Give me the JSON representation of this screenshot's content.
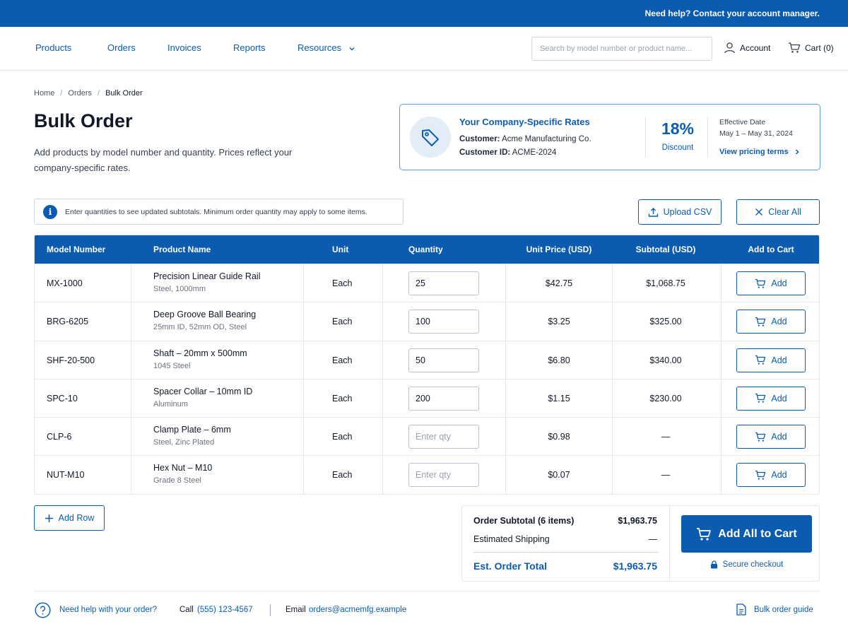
{
  "topbar": {
    "help_text": "Need help? Contact your account manager."
  },
  "nav": {
    "links": [
      "Products",
      "Orders",
      "Invoices",
      "Reports",
      "Resources"
    ],
    "search_placeholder": "Search by model number or product name...",
    "account_label": "Account",
    "cart_label": "Cart (0)"
  },
  "breadcrumb": [
    "Home",
    "Orders",
    "Bulk Order"
  ],
  "page": {
    "title": "Bulk Order",
    "intro": "Add products by model number and quantity. Prices reflect your company-specific rates."
  },
  "rates": {
    "title": "Your Company-Specific Rates",
    "customer_label": "Customer:",
    "customer_value": "Acme Manufacturing Co.",
    "customer_id_label": "Customer ID:",
    "customer_id_value": "ACME-2024",
    "discount_value": "18%",
    "discount_label": "Discount",
    "effective_label": "Effective Date",
    "effective_value": "May 1 – May 31, 2024",
    "pricing_link": "View pricing terms"
  },
  "info_message": "Enter quantities to see updated subtotals. Minimum order quantity may apply to some items.",
  "actions": {
    "upload_csv": "Upload CSV",
    "clear_all": "Clear All",
    "add_row": "Add Row"
  },
  "table": {
    "headers": [
      "Model Number",
      "Product Name",
      "Unit",
      "Quantity",
      "Unit Price (USD)",
      "Subtotal (USD)",
      "Add to Cart"
    ],
    "qty_placeholder": "Enter qty",
    "add_label": "Add",
    "rows": [
      {
        "model": "MX-1000",
        "name": "Precision Linear Guide Rail",
        "desc": "Steel, 1000mm",
        "unit": "Each",
        "qty": "25",
        "price": "$42.75",
        "subtotal": "$1,068.75"
      },
      {
        "model": "BRG-6205",
        "name": "Deep Groove Ball Bearing",
        "desc": "25mm ID, 52mm OD, Steel",
        "unit": "Each",
        "qty": "100",
        "price": "$3.25",
        "subtotal": "$325.00"
      },
      {
        "model": "SHF-20-500",
        "name": "Shaft – 20mm x 500mm",
        "desc": "1045 Steel",
        "unit": "Each",
        "qty": "50",
        "price": "$6.80",
        "subtotal": "$340.00"
      },
      {
        "model": "SPC-10",
        "name": "Spacer Collar – 10mm ID",
        "desc": "Aluminum",
        "unit": "Each",
        "qty": "200",
        "price": "$1.15",
        "subtotal": "$230.00"
      },
      {
        "model": "CLP-6",
        "name": "Clamp Plate – 6mm",
        "desc": "Steel, Zinc Plated",
        "unit": "Each",
        "qty": "",
        "price": "$0.98",
        "subtotal": "—"
      },
      {
        "model": "NUT-M10",
        "name": "Hex Nut – M10",
        "desc": "Grade 8 Steel",
        "unit": "Each",
        "qty": "",
        "price": "$0.07",
        "subtotal": "—"
      }
    ]
  },
  "summary": {
    "subtotal_label": "Order Subtotal (6 items)",
    "subtotal_value": "$1,963.75",
    "shipping_label": "Estimated Shipping",
    "shipping_value": "—",
    "total_label": "Est. Order Total",
    "total_value": "$1,963.75",
    "cta_label": "Add All to Cart",
    "secure_label": "Secure checkout"
  },
  "footer": {
    "help_text": "Need help with your order?",
    "call_label": "Call",
    "phone": "(555) 123-4567",
    "email_label": "Email",
    "email": "orders@acmemfg.example",
    "guide_label": "Bulk order guide"
  },
  "colors": {
    "brand": "#0b5cb0",
    "brand_light": "#e3edf8",
    "border": "#e5e7eb"
  }
}
